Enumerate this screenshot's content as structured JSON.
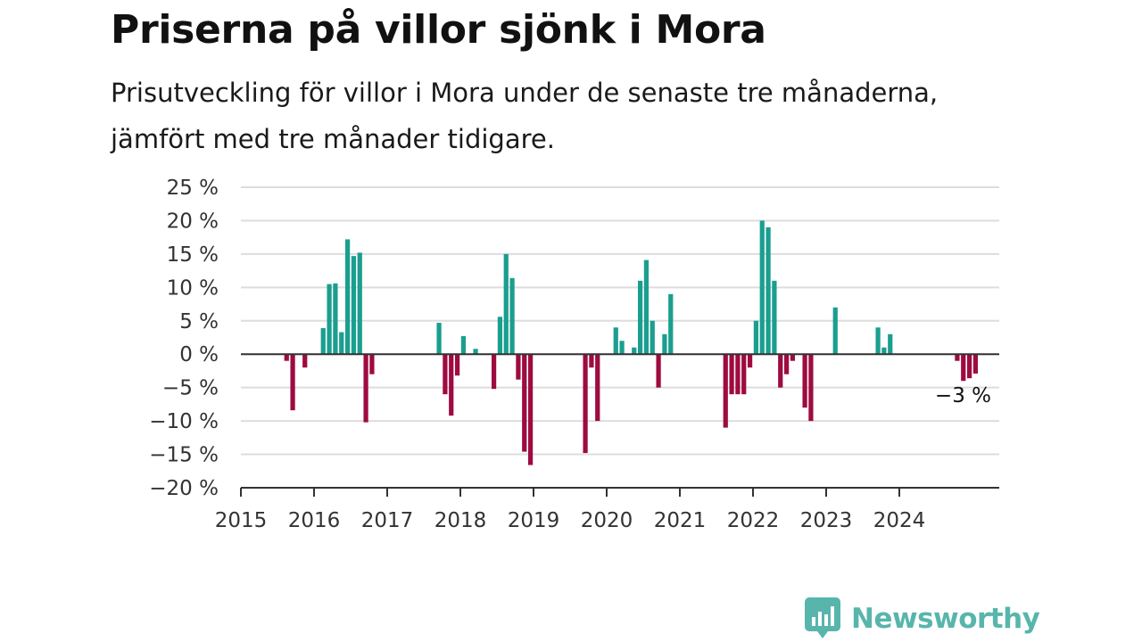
{
  "header": {
    "title": "Priserna på villor sjönk i Mora",
    "subtitle": "Prisutveckling för villor i Mora under de senaste tre månaderna, jämfört med tre månader tidigare."
  },
  "brand": {
    "name": "Newsworthy",
    "icon": "bar-chart-speech-bubble-icon",
    "color": "#58b5ac"
  },
  "colors": {
    "positive": "#1a9e8f",
    "negative": "#9e0b40",
    "grid": "#dddddd",
    "axis": "#333333"
  },
  "chart_data": {
    "type": "bar",
    "x_unit": "month",
    "x_start": "2015-01",
    "y_tick_labels": [
      "25 %",
      "20 %",
      "15 %",
      "10 %",
      "5 %",
      "0 %",
      "−5 %",
      "−10 %",
      "−15 %",
      "−20 %"
    ],
    "y_ticks": [
      25,
      20,
      15,
      10,
      5,
      0,
      -5,
      -10,
      -15,
      -20
    ],
    "ylim": [
      -20,
      25
    ],
    "x_tick_labels": [
      "2015",
      "2016",
      "2017",
      "2018",
      "2019",
      "2020",
      "2021",
      "2022",
      "2023",
      "2024"
    ],
    "grid": true,
    "annotation": {
      "text": "−3 %",
      "x": "2024-12",
      "y": -3
    },
    "values": [
      null,
      null,
      null,
      null,
      null,
      null,
      null,
      -1,
      -8.4,
      null,
      -2,
      null,
      null,
      3.9,
      10.5,
      10.6,
      3.3,
      17.2,
      14.7,
      15.2,
      -10.2,
      -3,
      null,
      null,
      null,
      null,
      null,
      null,
      null,
      null,
      null,
      null,
      4.7,
      -6,
      -9.2,
      -3.2,
      2.7,
      null,
      0.8,
      null,
      null,
      -5.2,
      5.6,
      15,
      11.4,
      -3.8,
      -14.6,
      -16.6,
      null,
      null,
      null,
      null,
      null,
      null,
      null,
      null,
      -14.8,
      -2,
      -10,
      null,
      null,
      4,
      2,
      null,
      1,
      11,
      14.1,
      5,
      -5,
      3,
      9,
      null,
      null,
      null,
      null,
      null,
      null,
      null,
      null,
      -11,
      -6,
      -6,
      -6,
      -2,
      5,
      20,
      19,
      11,
      -5,
      -3,
      -1,
      null,
      -8,
      -10,
      null,
      null,
      null,
      7,
      null,
      null,
      null,
      null,
      null,
      null,
      4,
      1,
      3,
      null,
      null,
      null,
      null,
      null,
      null,
      null,
      null,
      null,
      null,
      -1,
      -4,
      -3.6,
      -2.9
    ]
  }
}
